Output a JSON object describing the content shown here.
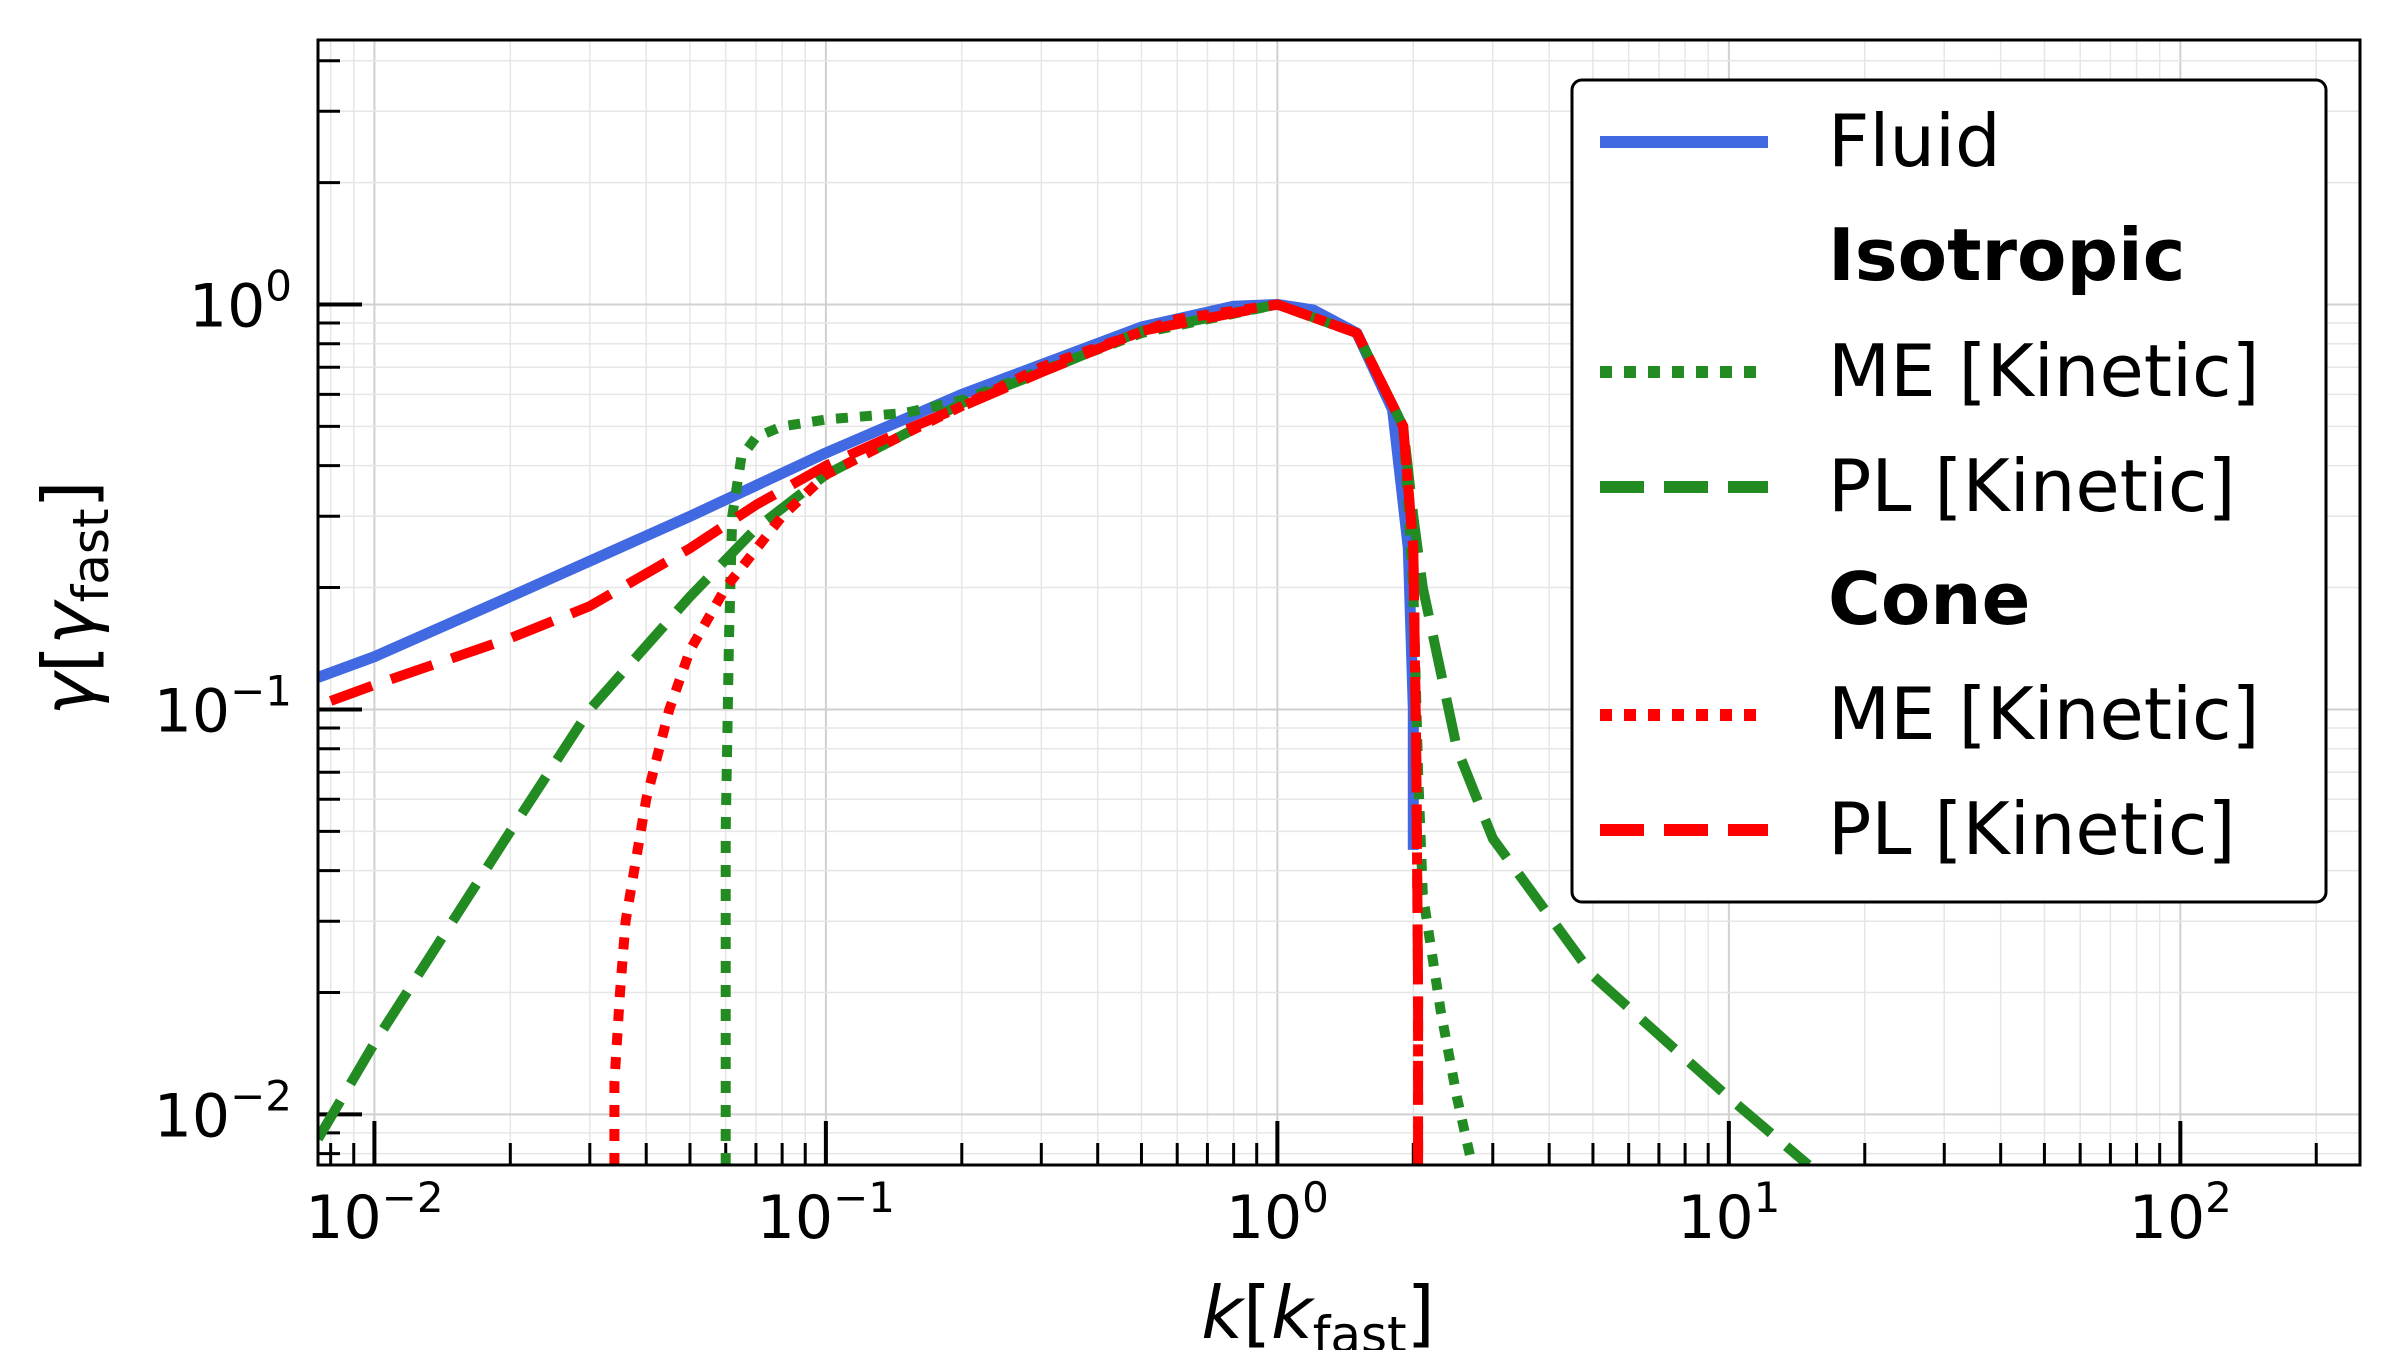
{
  "chart_data": {
    "type": "line",
    "xscale": "log",
    "yscale": "log",
    "xlim": [
      0.0075,
      250
    ],
    "ylim": [
      0.0075,
      4.5
    ],
    "xlabel": {
      "main": "k",
      "open": "[",
      "sub_base": "k",
      "sub": "fast",
      "close": "]"
    },
    "ylabel": {
      "main": "γ",
      "open": "[",
      "sub_base": "γ",
      "sub": "fast",
      "close": "]"
    },
    "grid": true,
    "legend_position": "top-right",
    "x_ticks": [
      {
        "value": 0.01,
        "base": "10",
        "exp": "−2"
      },
      {
        "value": 0.1,
        "base": "10",
        "exp": "−1"
      },
      {
        "value": 1,
        "base": "10",
        "exp": "0"
      },
      {
        "value": 10,
        "base": "10",
        "exp": "1"
      },
      {
        "value": 100,
        "base": "10",
        "exp": "2"
      }
    ],
    "y_ticks": [
      {
        "value": 0.01,
        "base": "10",
        "exp": "−2"
      },
      {
        "value": 0.1,
        "base": "10",
        "exp": "−1"
      },
      {
        "value": 1,
        "base": "10",
        "exp": "0"
      }
    ],
    "legend_groups": {
      "isotropic": "Isotropic",
      "cone": "Cone"
    },
    "series": [
      {
        "name": "Fluid",
        "key": "fluid",
        "color": "#4169e1",
        "style": "solid",
        "x": [
          0.0075,
          0.01,
          0.02,
          0.05,
          0.1,
          0.2,
          0.5,
          0.8,
          1.0,
          1.2,
          1.5,
          1.8,
          1.95,
          2.0,
          2.0
        ],
        "y": [
          0.12,
          0.135,
          0.19,
          0.3,
          0.43,
          0.6,
          0.88,
          0.99,
          1.0,
          0.97,
          0.85,
          0.55,
          0.25,
          0.1,
          0.045
        ]
      },
      {
        "name": "ME [Kinetic]",
        "group": "isotropic",
        "key": "iso_me",
        "color": "#228b22",
        "style": "dotted",
        "x": [
          0.06,
          0.06,
          0.061,
          0.062,
          0.065,
          0.07,
          0.08,
          0.1,
          0.15,
          0.2,
          0.5,
          1.0,
          1.5,
          1.9,
          2.0,
          2.05,
          2.1,
          2.3,
          2.5,
          2.7
        ],
        "y": [
          0.0075,
          0.05,
          0.15,
          0.3,
          0.42,
          0.47,
          0.5,
          0.52,
          0.54,
          0.58,
          0.85,
          1.0,
          0.85,
          0.5,
          0.2,
          0.07,
          0.035,
          0.018,
          0.011,
          0.0075
        ]
      },
      {
        "name": "PL [Kinetic]",
        "group": "isotropic",
        "key": "iso_pl",
        "color": "#228b22",
        "style": "dashed",
        "x": [
          0.0075,
          0.01,
          0.02,
          0.03,
          0.05,
          0.07,
          0.1,
          0.15,
          0.2,
          0.3,
          0.5,
          1.0,
          1.5,
          1.9,
          2.0,
          2.1,
          2.5,
          3.0,
          5.0,
          10.0,
          15.0
        ],
        "y": [
          0.0087,
          0.015,
          0.05,
          0.1,
          0.19,
          0.28,
          0.38,
          0.48,
          0.57,
          0.68,
          0.86,
          1.0,
          0.85,
          0.5,
          0.3,
          0.2,
          0.08,
          0.048,
          0.022,
          0.011,
          0.0075
        ]
      },
      {
        "name": "ME [Kinetic]",
        "group": "cone",
        "key": "cone_me",
        "color": "#ff0000",
        "style": "dotted",
        "x": [
          0.034,
          0.034,
          0.035,
          0.036,
          0.04,
          0.045,
          0.05,
          0.06,
          0.08,
          0.1,
          0.15,
          0.3,
          0.6,
          1.0,
          1.5,
          1.9,
          2.0,
          2.03,
          2.05,
          2.05
        ],
        "y": [
          0.0075,
          0.012,
          0.02,
          0.03,
          0.06,
          0.1,
          0.14,
          0.2,
          0.3,
          0.38,
          0.48,
          0.7,
          0.92,
          1.0,
          0.85,
          0.5,
          0.25,
          0.08,
          0.02,
          0.0075
        ]
      },
      {
        "name": "PL [Kinetic]",
        "group": "cone",
        "key": "cone_pl",
        "color": "#ff0000",
        "style": "dashed",
        "x": [
          0.008,
          0.01,
          0.02,
          0.03,
          0.05,
          0.07,
          0.1,
          0.15,
          0.2,
          0.3,
          0.5,
          1.0,
          1.5,
          1.9,
          2.0,
          2.03,
          2.05,
          2.05
        ],
        "y": [
          0.105,
          0.115,
          0.15,
          0.18,
          0.25,
          0.32,
          0.4,
          0.49,
          0.56,
          0.68,
          0.86,
          1.0,
          0.85,
          0.5,
          0.25,
          0.08,
          0.02,
          0.0075
        ]
      }
    ]
  }
}
